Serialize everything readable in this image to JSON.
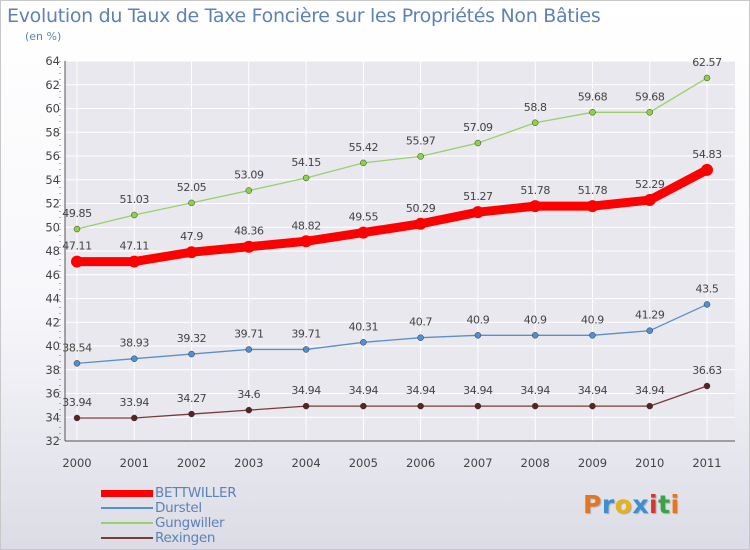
{
  "header": {
    "title": "Evolution du Taux de Taxe Foncière sur les Propriétés Non Bâties",
    "unit": "(en %)"
  },
  "logo": {
    "text": "Proxiti",
    "colors": [
      "#e8741c",
      "#3b8fd0",
      "#e5b21a",
      "#3b8fd0",
      "#d6352b",
      "#3aa348",
      "#e8741c"
    ]
  },
  "colors": {
    "title": "#5d82b5",
    "axis": "#555555",
    "grid": "#ffffff"
  },
  "chart_data": {
    "type": "line",
    "title": "Evolution du Taux de Taxe Foncière sur les Propriétés Non Bâties",
    "ylabel": "(en %)",
    "xlabel": "",
    "categories": [
      "2000",
      "2001",
      "2002",
      "2003",
      "2004",
      "2005",
      "2006",
      "2007",
      "2008",
      "2009",
      "2010",
      "2011"
    ],
    "ylim": [
      32,
      64
    ],
    "yticks": [
      "32",
      "34",
      "36",
      "38",
      "40",
      "42",
      "44",
      "46",
      "48",
      "50",
      "52",
      "54",
      "56",
      "58",
      "60",
      "62",
      "64"
    ],
    "grid": true,
    "legend_position": "bottom-left",
    "series": [
      {
        "name": "BETTWILLER",
        "color": "#ff0000",
        "marker": "#ff0000",
        "emphasis": true,
        "values": [
          47.11,
          47.11,
          47.9,
          48.36,
          48.82,
          49.55,
          50.29,
          51.27,
          51.78,
          51.78,
          52.29,
          54.83
        ],
        "labels": [
          "47.11",
          "47.11",
          "47.9",
          "48.36",
          "48.82",
          "49.55",
          "50.29",
          "51.27",
          "51.78",
          "51.78",
          "52.29",
          "54.83"
        ]
      },
      {
        "name": "Durstel",
        "color": "#5b8fc8",
        "marker": "#4f8fd6",
        "values": [
          38.54,
          38.93,
          39.32,
          39.71,
          39.71,
          40.31,
          40.7,
          40.9,
          40.9,
          40.9,
          41.29,
          43.5
        ],
        "labels": [
          "38.54",
          "38.93",
          "39.32",
          "39.71",
          "39.71",
          "40.31",
          "40.7",
          "40.9",
          "40.9",
          "40.9",
          "41.29",
          "43.5"
        ]
      },
      {
        "name": "Gungwiller",
        "color": "#9ad06a",
        "marker": "#8ed24a",
        "values": [
          49.85,
          51.03,
          52.05,
          53.09,
          54.15,
          55.42,
          55.97,
          57.09,
          58.8,
          59.68,
          59.68,
          62.57
        ],
        "labels": [
          "49.85",
          "51.03",
          "52.05",
          "53.09",
          "54.15",
          "55.42",
          "55.97",
          "57.09",
          "58.8",
          "59.68",
          "59.68",
          "62.57"
        ]
      },
      {
        "name": "Rexingen",
        "color": "#7a3a3a",
        "marker": "#5a2222",
        "values": [
          33.94,
          33.94,
          34.27,
          34.6,
          34.94,
          34.94,
          34.94,
          34.94,
          34.94,
          34.94,
          34.94,
          36.63
        ],
        "labels": [
          "33.94",
          "33.94",
          "34.27",
          "34.6",
          "34.94",
          "34.94",
          "34.94",
          "34.94",
          "34.94",
          "34.94",
          "34.94",
          "36.63"
        ]
      }
    ]
  }
}
